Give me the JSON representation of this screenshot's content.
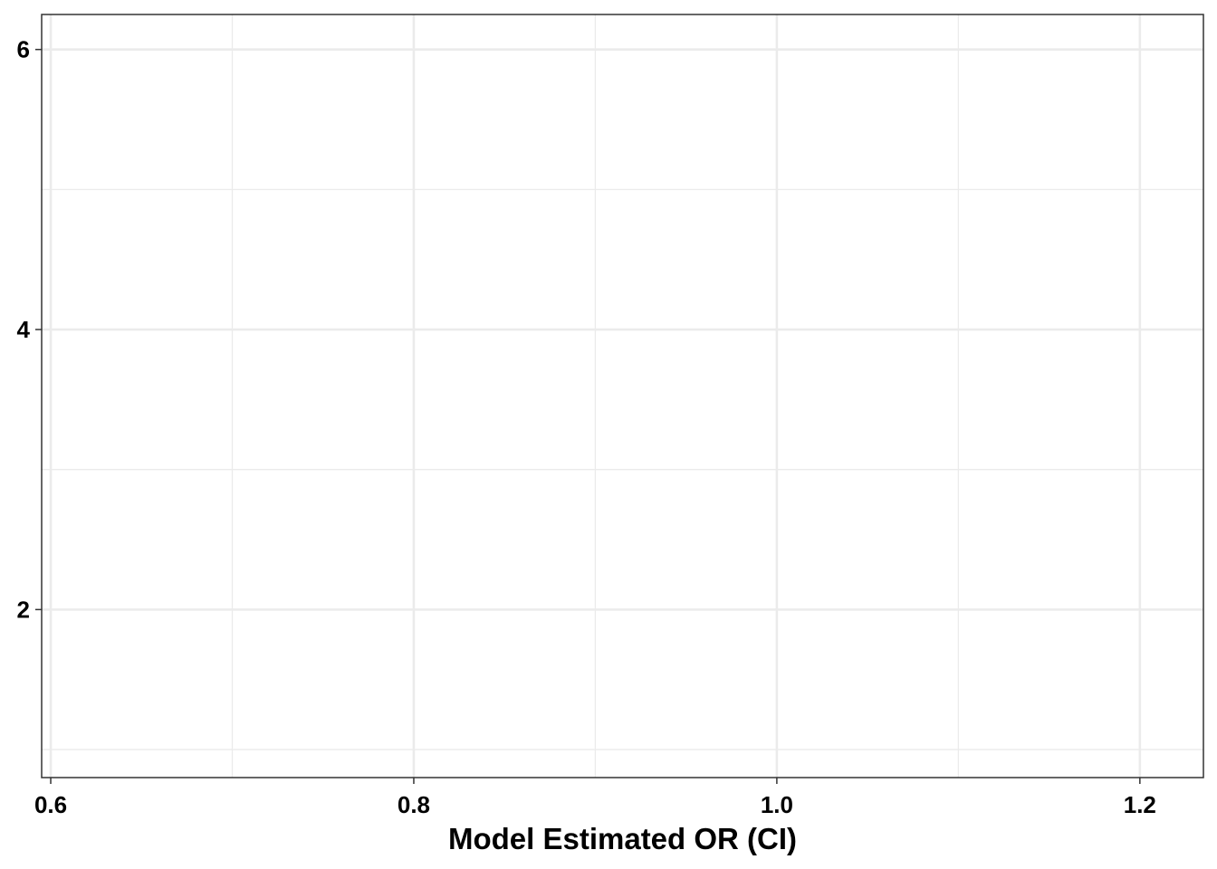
{
  "chart_data": {
    "type": "scatter",
    "title": "",
    "xlabel": "Model Estimated OR (CI)",
    "ylabel": "",
    "xlim": [
      0.595,
      1.235
    ],
    "ylim": [
      0.8,
      6.25
    ],
    "x_ticks": [
      0.6,
      0.8,
      1.0,
      1.2
    ],
    "x_tick_labels": [
      "0.6",
      "0.8",
      "1.0",
      "1.2"
    ],
    "x_minor_ticks": [
      0.7,
      0.9,
      1.1
    ],
    "y_ticks": [
      2,
      4,
      6
    ],
    "y_tick_labels": [
      "2",
      "4",
      "6"
    ],
    "y_minor_ticks": [
      1,
      3,
      5
    ],
    "series": [],
    "grid": true,
    "legend": "none",
    "colors": {
      "panel_border": "#333333",
      "major_grid": "#ebebeb",
      "minor_grid": "#ebebeb",
      "tick": "#333333",
      "text": "#000000"
    }
  }
}
